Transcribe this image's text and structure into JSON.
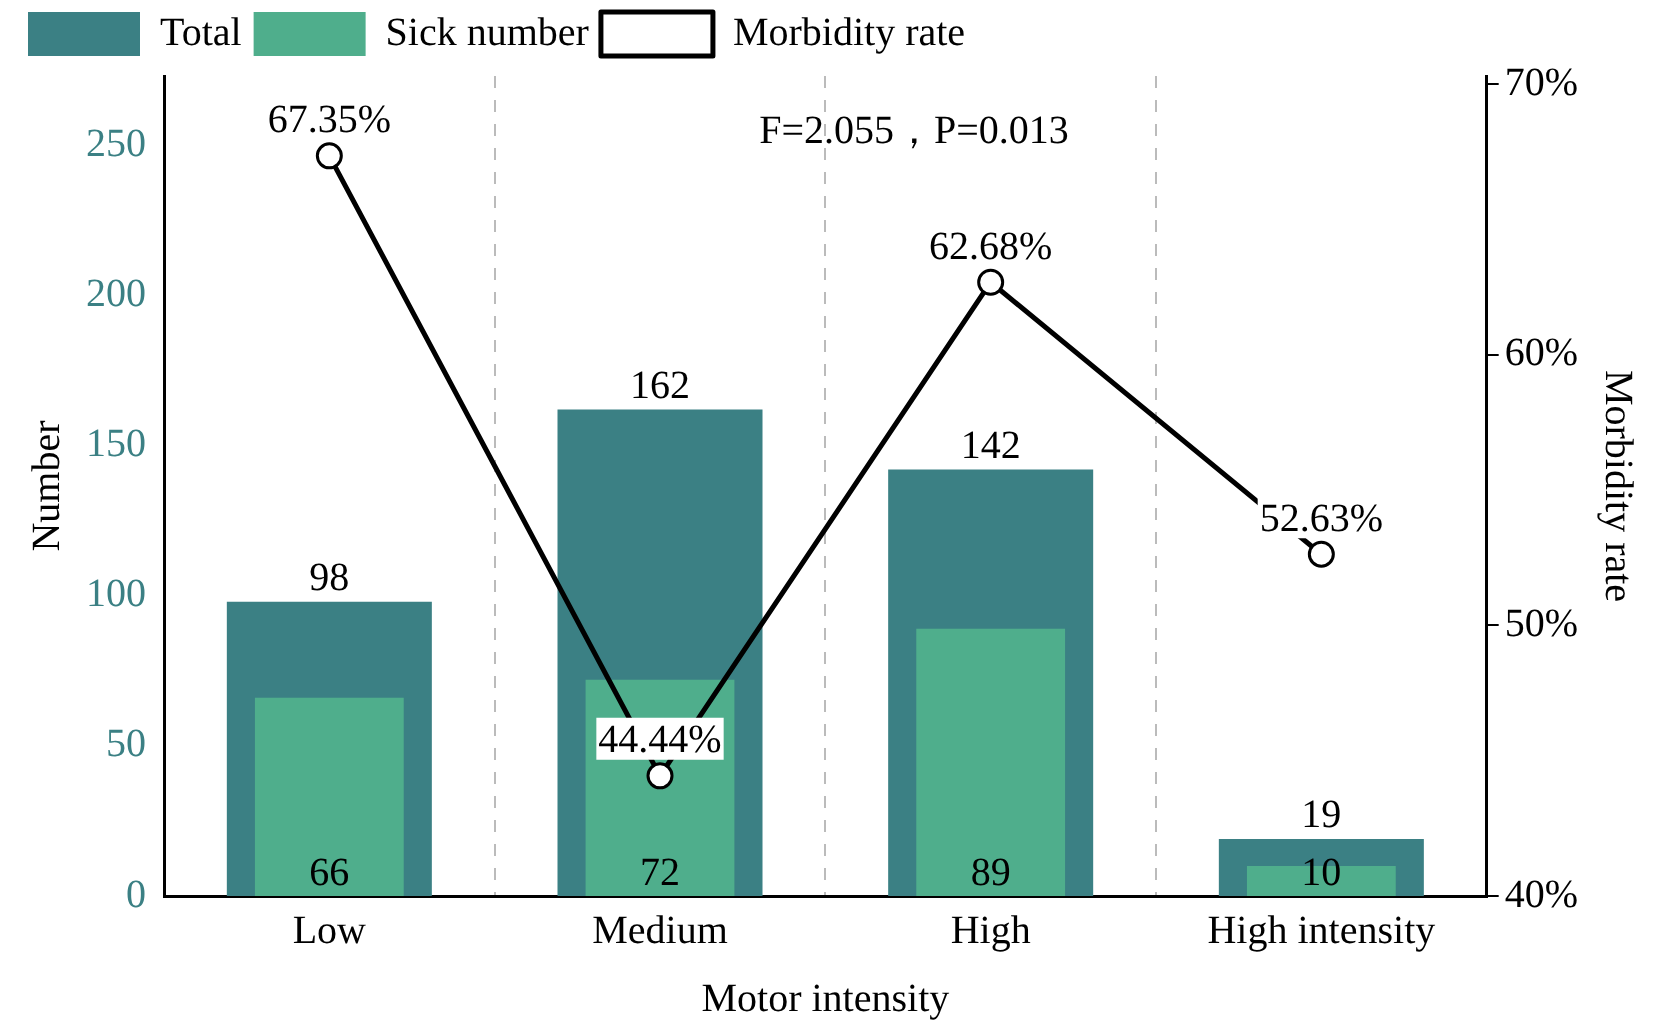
{
  "chart_data": {
    "type": "bar",
    "xlabel": "Motor intensity",
    "ylabel": "Number",
    "y2label": "Morbidity rate",
    "categories": [
      "Low",
      "Medium",
      "High",
      "High intensity"
    ],
    "series": [
      {
        "name": "Total",
        "color": "#3b8084",
        "values": [
          98,
          162,
          142,
          19
        ]
      },
      {
        "name": "Sick number",
        "color": "#4fae8c",
        "values": [
          66,
          72,
          89,
          10
        ]
      },
      {
        "name": "Morbidity rate",
        "type": "line",
        "axis": "y2",
        "color": "#000000",
        "marker": "circle",
        "values": [
          67.35,
          44.44,
          62.68,
          52.63
        ],
        "value_labels": [
          "67.35%",
          "44.44%",
          "62.68%",
          "52.63%"
        ]
      }
    ],
    "ylim": [
      0,
      273
    ],
    "yticks": [
      0,
      50,
      100,
      150,
      200,
      250
    ],
    "y2lim": [
      40,
      70.3
    ],
    "y2ticks": [
      {
        "value": 40,
        "label": "40%"
      },
      {
        "value": 50,
        "label": "50%"
      },
      {
        "value": 60,
        "label": "60%"
      },
      {
        "value": 70,
        "label": "70%"
      }
    ],
    "data_labels": true,
    "grid": "x",
    "legend": "top left",
    "annotations": [
      "F=2.055，P=0.013"
    ]
  }
}
